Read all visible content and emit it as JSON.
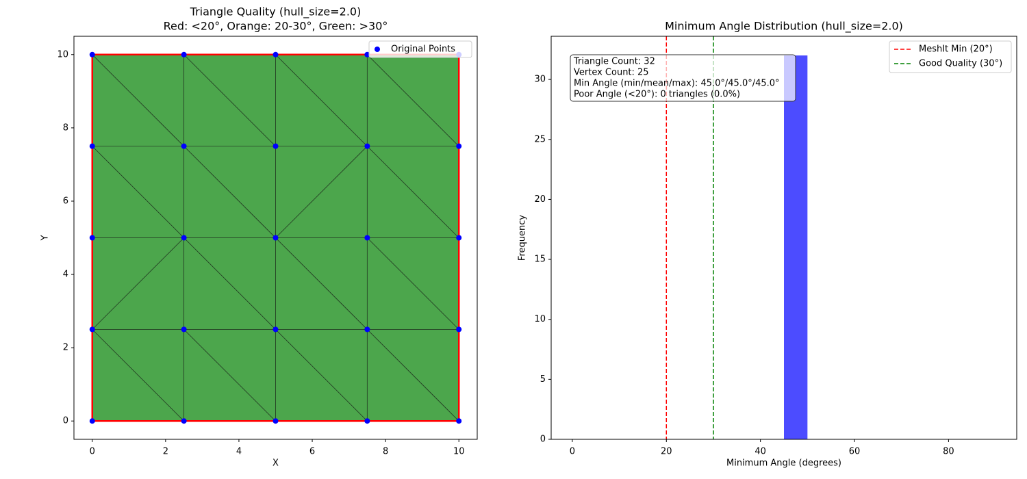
{
  "chart_data": [
    {
      "type": "triplot",
      "title": "Triangle Quality (hull_size=2.0)",
      "subtitle": "Red: <20°, Orange: 20-30°, Green: >30°",
      "x_label": "X",
      "y_label": "Y",
      "xlim": [
        -0.5,
        10.5
      ],
      "ylim": [
        -0.5,
        10.5
      ],
      "xticks": [
        0,
        2,
        4,
        6,
        8,
        10
      ],
      "yticks": [
        0,
        2,
        4,
        6,
        8,
        10
      ],
      "series": [
        {
          "name": "Original Points",
          "color": "#0000ff",
          "x": [
            0,
            2.5,
            5,
            7.5,
            10,
            0,
            2.5,
            5,
            7.5,
            10,
            0,
            2.5,
            5,
            7.5,
            10,
            0,
            2.5,
            5,
            7.5,
            10,
            0,
            2.5,
            5,
            7.5,
            10
          ],
          "y": [
            0,
            0,
            0,
            0,
            0,
            2.5,
            2.5,
            2.5,
            2.5,
            2.5,
            5,
            5,
            5,
            5,
            5,
            7.5,
            7.5,
            7.5,
            7.5,
            7.5,
            10,
            10,
            10,
            10,
            10
          ]
        }
      ],
      "triangles": [
        [
          0,
          1,
          5
        ],
        [
          1,
          6,
          5
        ],
        [
          1,
          2,
          6
        ],
        [
          2,
          7,
          6
        ],
        [
          2,
          3,
          7
        ],
        [
          3,
          8,
          7
        ],
        [
          3,
          4,
          8
        ],
        [
          4,
          9,
          8
        ],
        [
          5,
          6,
          11
        ],
        [
          5,
          11,
          10
        ],
        [
          6,
          7,
          11
        ],
        [
          7,
          12,
          11
        ],
        [
          7,
          8,
          12
        ],
        [
          8,
          13,
          12
        ],
        [
          8,
          9,
          13
        ],
        [
          9,
          14,
          13
        ],
        [
          10,
          11,
          15
        ],
        [
          11,
          16,
          15
        ],
        [
          11,
          12,
          16
        ],
        [
          12,
          17,
          16
        ],
        [
          12,
          13,
          18
        ],
        [
          12,
          18,
          17
        ],
        [
          13,
          14,
          18
        ],
        [
          14,
          19,
          18
        ],
        [
          15,
          16,
          20
        ],
        [
          16,
          21,
          20
        ],
        [
          16,
          17,
          21
        ],
        [
          17,
          22,
          21
        ],
        [
          17,
          18,
          22
        ],
        [
          18,
          23,
          22
        ],
        [
          18,
          19,
          23
        ],
        [
          19,
          24,
          23
        ]
      ],
      "triangle_color": "#4ca64c",
      "hull_color": "#ff0000",
      "legend": "upper right"
    },
    {
      "type": "histogram",
      "title": "Minimum Angle Distribution (hull_size=2.0)",
      "x_label": "Minimum Angle (degrees)",
      "y_label": "Frequency",
      "xlim": [
        -4.5,
        94.5
      ],
      "ylim": [
        0,
        33.6
      ],
      "xticks": [
        0,
        20,
        40,
        60,
        80
      ],
      "yticks": [
        0,
        5,
        10,
        15,
        20,
        25,
        30
      ],
      "bins": [
        0,
        5,
        10,
        15,
        20,
        25,
        30,
        35,
        40,
        45,
        50,
        55,
        60,
        65,
        70,
        75,
        80,
        85,
        90
      ],
      "counts": [
        0,
        0,
        0,
        0,
        0,
        0,
        0,
        0,
        0,
        32,
        0,
        0,
        0,
        0,
        0,
        0,
        0,
        0
      ],
      "color": "#4c4cff",
      "vlines": [
        {
          "name": "MeshIt Min (20°)",
          "value": 20,
          "color": "#ff0000"
        },
        {
          "name": "Good Quality (30°)",
          "value": 30,
          "color": "#008000"
        }
      ],
      "annotation": [
        "Triangle Count: 32",
        "Vertex Count: 25",
        "Min Angle (min/mean/max): 45.0°/45.0°/45.0°",
        "Poor Angle (<20°): 0 triangles (0.0%)"
      ],
      "legend": "upper right"
    }
  ]
}
